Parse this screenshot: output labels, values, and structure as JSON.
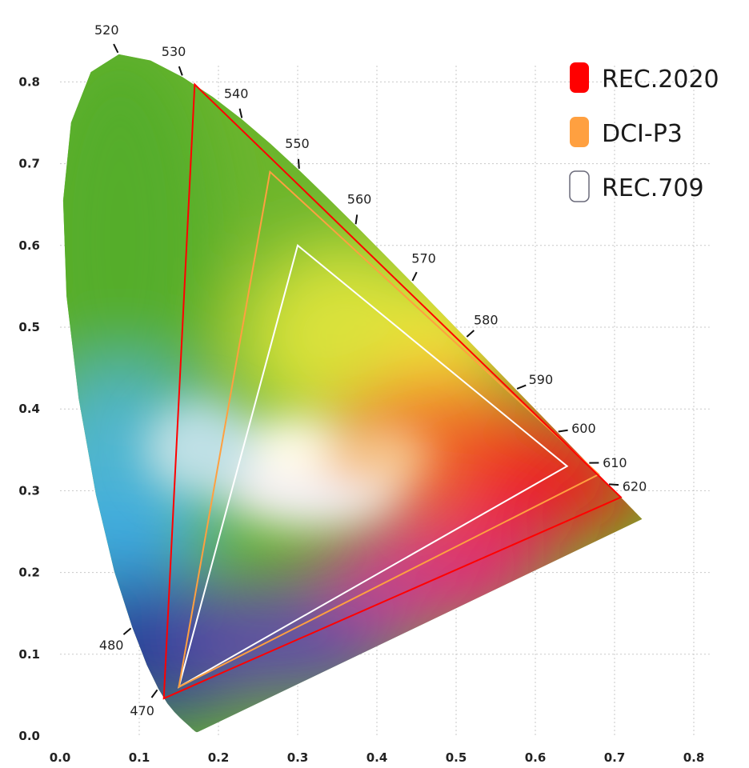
{
  "chart_data": {
    "type": "chromaticity-diagram",
    "x_ticks": [
      "0.0",
      "0.1",
      "0.2",
      "0.3",
      "0.4",
      "0.5",
      "0.6",
      "0.7",
      "0.8"
    ],
    "y_ticks": [
      "0.0",
      "0.1",
      "0.2",
      "0.3",
      "0.4",
      "0.5",
      "0.6",
      "0.7",
      "0.8"
    ],
    "xlim": [
      0,
      0.8
    ],
    "ylim": [
      0,
      0.8
    ],
    "grid": true,
    "wavelength_labels": [
      {
        "nm": 470,
        "label": "470",
        "x": 0.124,
        "y": 0.058
      },
      {
        "nm": 480,
        "label": "480",
        "x": 0.091,
        "y": 0.133
      },
      {
        "nm": 520,
        "label": "520",
        "x": 0.074,
        "y": 0.834
      },
      {
        "nm": 530,
        "label": "530",
        "x": 0.155,
        "y": 0.806
      },
      {
        "nm": 540,
        "label": "540",
        "x": 0.23,
        "y": 0.754
      },
      {
        "nm": 550,
        "label": "550",
        "x": 0.302,
        "y": 0.692
      },
      {
        "nm": 560,
        "label": "560",
        "x": 0.373,
        "y": 0.624
      },
      {
        "nm": 570,
        "label": "570",
        "x": 0.444,
        "y": 0.555
      },
      {
        "nm": 580,
        "label": "580",
        "x": 0.512,
        "y": 0.487
      },
      {
        "nm": 590,
        "label": "590",
        "x": 0.575,
        "y": 0.424
      },
      {
        "nm": 600,
        "label": "600",
        "x": 0.627,
        "y": 0.372
      },
      {
        "nm": 610,
        "label": "610",
        "x": 0.666,
        "y": 0.334
      },
      {
        "nm": 620,
        "label": "620",
        "x": 0.691,
        "y": 0.308
      }
    ],
    "gamuts": [
      {
        "name": "REC.2020",
        "color": "#ff0000",
        "points": [
          [
            0.708,
            0.292
          ],
          [
            0.17,
            0.797
          ],
          [
            0.131,
            0.046
          ]
        ]
      },
      {
        "name": "DCI-P3",
        "color": "#ffa040",
        "points": [
          [
            0.68,
            0.32
          ],
          [
            0.265,
            0.69
          ],
          [
            0.15,
            0.06
          ]
        ]
      },
      {
        "name": "REC.709",
        "color": "#ffffff",
        "points": [
          [
            0.64,
            0.33
          ],
          [
            0.3,
            0.6
          ],
          [
            0.15,
            0.06
          ]
        ]
      }
    ]
  },
  "legend": [
    {
      "label": "REC.2020",
      "color": "#ff0000",
      "filled": true
    },
    {
      "label": "DCI-P3",
      "color": "#ffa040",
      "filled": true
    },
    {
      "label": "REC.709",
      "color": "#ffffff",
      "filled": false
    }
  ]
}
